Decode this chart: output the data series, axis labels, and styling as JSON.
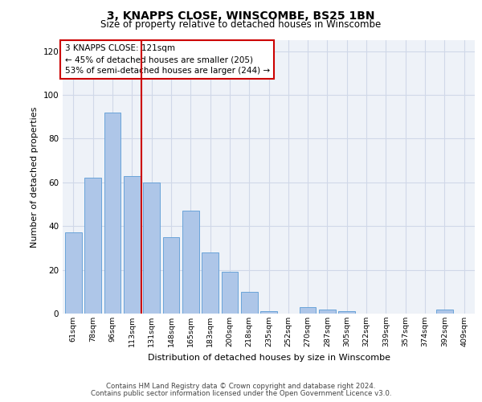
{
  "title": "3, KNAPPS CLOSE, WINSCOMBE, BS25 1BN",
  "subtitle": "Size of property relative to detached houses in Winscombe",
  "xlabel": "Distribution of detached houses by size in Winscombe",
  "ylabel": "Number of detached properties",
  "categories": [
    "61sqm",
    "78sqm",
    "96sqm",
    "113sqm",
    "131sqm",
    "148sqm",
    "165sqm",
    "183sqm",
    "200sqm",
    "218sqm",
    "235sqm",
    "252sqm",
    "270sqm",
    "287sqm",
    "305sqm",
    "322sqm",
    "339sqm",
    "357sqm",
    "374sqm",
    "392sqm",
    "409sqm"
  ],
  "values": [
    37,
    62,
    92,
    63,
    60,
    35,
    47,
    28,
    19,
    10,
    1,
    0,
    3,
    2,
    1,
    0,
    0,
    0,
    0,
    2,
    0
  ],
  "bar_color": "#aec6e8",
  "bar_edge_color": "#5b9bd5",
  "vline_x": 3.5,
  "vline_color": "#cc0000",
  "annotation_text": "3 KNAPPS CLOSE: 121sqm\n← 45% of detached houses are smaller (205)\n53% of semi-detached houses are larger (244) →",
  "annotation_box_color": "#ffffff",
  "annotation_box_edge_color": "#cc0000",
  "ylim": [
    0,
    125
  ],
  "yticks": [
    0,
    20,
    40,
    60,
    80,
    100,
    120
  ],
  "grid_color": "#d0d8e8",
  "background_color": "#eef2f8",
  "footer_line1": "Contains HM Land Registry data © Crown copyright and database right 2024.",
  "footer_line2": "Contains public sector information licensed under the Open Government Licence v3.0."
}
